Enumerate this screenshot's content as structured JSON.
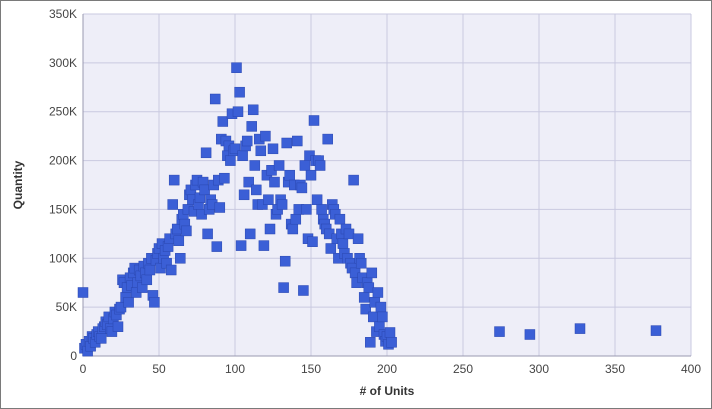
{
  "chart_data": {
    "type": "scatter",
    "xlabel": "# of Units",
    "ylabel": "Quantity",
    "xlim": [
      0,
      400
    ],
    "ylim": [
      0,
      350000
    ],
    "x_ticks": [
      0,
      50,
      100,
      150,
      200,
      250,
      300,
      350,
      400
    ],
    "x_tick_labels": [
      "0",
      "50",
      "100",
      "150",
      "200",
      "250",
      "300",
      "350",
      "400"
    ],
    "y_ticks": [
      0,
      50000,
      100000,
      150000,
      200000,
      250000,
      300000,
      350000
    ],
    "y_tick_labels": [
      "0",
      "50K",
      "100K",
      "150K",
      "200K",
      "250K",
      "300K",
      "350K"
    ],
    "grid": true,
    "legend": "none",
    "colors": {
      "marker": "#3b5fd6",
      "marker_edge": "#2a47b0",
      "plot_background": "#eeeef8",
      "grid": "#c9c9e0"
    },
    "series": [
      {
        "points": [
          [
            0,
            65000
          ],
          [
            1,
            8000
          ],
          [
            2,
            12000
          ],
          [
            3,
            5000
          ],
          [
            4,
            15000
          ],
          [
            5,
            10000
          ],
          [
            6,
            20000
          ],
          [
            7,
            18000
          ],
          [
            8,
            14000
          ],
          [
            9,
            22000
          ],
          [
            10,
            25000
          ],
          [
            11,
            20000
          ],
          [
            12,
            18000
          ],
          [
            13,
            28000
          ],
          [
            14,
            30000
          ],
          [
            15,
            35000
          ],
          [
            16,
            32000
          ],
          [
            17,
            40000
          ],
          [
            18,
            28000
          ],
          [
            19,
            25000
          ],
          [
            20,
            38000
          ],
          [
            21,
            45000
          ],
          [
            22,
            42000
          ],
          [
            23,
            30000
          ],
          [
            24,
            48000
          ],
          [
            25,
            50000
          ],
          [
            26,
            78000
          ],
          [
            27,
            75000
          ],
          [
            28,
            60000
          ],
          [
            29,
            70000
          ],
          [
            30,
            55000
          ],
          [
            31,
            80000
          ],
          [
            32,
            72000
          ],
          [
            33,
            85000
          ],
          [
            34,
            90000
          ],
          [
            35,
            65000
          ],
          [
            36,
            75000
          ],
          [
            37,
            88000
          ],
          [
            38,
            82000
          ],
          [
            39,
            70000
          ],
          [
            40,
            92000
          ],
          [
            41,
            85000
          ],
          [
            42,
            78000
          ],
          [
            43,
            95000
          ],
          [
            44,
            88000
          ],
          [
            45,
            100000
          ],
          [
            46,
            62000
          ],
          [
            47,
            55000
          ],
          [
            48,
            98000
          ],
          [
            49,
            105000
          ],
          [
            50,
            110000
          ],
          [
            51,
            90000
          ],
          [
            52,
            115000
          ],
          [
            53,
            100000
          ],
          [
            54,
            108000
          ],
          [
            55,
            95000
          ],
          [
            56,
            112000
          ],
          [
            57,
            120000
          ],
          [
            58,
            88000
          ],
          [
            59,
            155000
          ],
          [
            60,
            180000
          ],
          [
            61,
            125000
          ],
          [
            62,
            130000
          ],
          [
            63,
            118000
          ],
          [
            64,
            100000
          ],
          [
            65,
            140000
          ],
          [
            66,
            145000
          ],
          [
            67,
            135000
          ],
          [
            68,
            128000
          ],
          [
            69,
            150000
          ],
          [
            70,
            165000
          ],
          [
            71,
            170000
          ],
          [
            72,
            160000
          ],
          [
            73,
            148000
          ],
          [
            74,
            175000
          ],
          [
            75,
            180000
          ],
          [
            76,
            155000
          ],
          [
            77,
            162000
          ],
          [
            78,
            145000
          ],
          [
            79,
            178000
          ],
          [
            80,
            170000
          ],
          [
            81,
            208000
          ],
          [
            82,
            125000
          ],
          [
            83,
            150000
          ],
          [
            84,
            160000
          ],
          [
            85,
            155000
          ],
          [
            86,
            175000
          ],
          [
            87,
            263000
          ],
          [
            88,
            112000
          ],
          [
            89,
            180000
          ],
          [
            90,
            152000
          ],
          [
            91,
            222000
          ],
          [
            92,
            240000
          ],
          [
            93,
            182000
          ],
          [
            94,
            220000
          ],
          [
            95,
            205000
          ],
          [
            96,
            215000
          ],
          [
            97,
            200000
          ],
          [
            98,
            248000
          ],
          [
            99,
            210000
          ],
          [
            100,
            212000
          ],
          [
            101,
            295000
          ],
          [
            102,
            250000
          ],
          [
            103,
            270000
          ],
          [
            104,
            113000
          ],
          [
            105,
            205000
          ],
          [
            106,
            165000
          ],
          [
            107,
            215000
          ],
          [
            108,
            220000
          ],
          [
            109,
            178000
          ],
          [
            110,
            125000
          ],
          [
            111,
            235000
          ],
          [
            112,
            252000
          ],
          [
            113,
            195000
          ],
          [
            114,
            170000
          ],
          [
            115,
            155000
          ],
          [
            116,
            222000
          ],
          [
            117,
            210000
          ],
          [
            118,
            155000
          ],
          [
            119,
            113000
          ],
          [
            120,
            225000
          ],
          [
            121,
            185000
          ],
          [
            122,
            160000
          ],
          [
            123,
            130000
          ],
          [
            124,
            190000
          ],
          [
            125,
            212000
          ],
          [
            126,
            178000
          ],
          [
            127,
            145000
          ],
          [
            128,
            150000
          ],
          [
            129,
            195000
          ],
          [
            130,
            160000
          ],
          [
            131,
            155000
          ],
          [
            132,
            70000
          ],
          [
            133,
            97000
          ],
          [
            134,
            218000
          ],
          [
            135,
            178000
          ],
          [
            136,
            185000
          ],
          [
            137,
            135000
          ],
          [
            138,
            130000
          ],
          [
            139,
            175000
          ],
          [
            140,
            140000
          ],
          [
            141,
            220000
          ],
          [
            142,
            150000
          ],
          [
            143,
            175000
          ],
          [
            144,
            172000
          ],
          [
            145,
            67000
          ],
          [
            146,
            195000
          ],
          [
            147,
            150000
          ],
          [
            148,
            120000
          ],
          [
            149,
            205000
          ],
          [
            150,
            185000
          ],
          [
            151,
            117000
          ],
          [
            152,
            241000
          ],
          [
            153,
            200000
          ],
          [
            154,
            160000
          ],
          [
            155,
            200000
          ],
          [
            156,
            195000
          ],
          [
            157,
            150000
          ],
          [
            158,
            140000
          ],
          [
            159,
            135000
          ],
          [
            160,
            130000
          ],
          [
            161,
            222000
          ],
          [
            162,
            125000
          ],
          [
            163,
            110000
          ],
          [
            164,
            155000
          ],
          [
            165,
            150000
          ],
          [
            166,
            145000
          ],
          [
            167,
            120000
          ],
          [
            168,
            100000
          ],
          [
            169,
            140000
          ],
          [
            170,
            125000
          ],
          [
            171,
            115000
          ],
          [
            172,
            105000
          ],
          [
            173,
            130000
          ],
          [
            174,
            100000
          ],
          [
            175,
            125000
          ],
          [
            176,
            95000
          ],
          [
            177,
            90000
          ],
          [
            178,
            180000
          ],
          [
            179,
            85000
          ],
          [
            180,
            75000
          ],
          [
            181,
            120000
          ],
          [
            182,
            100000
          ],
          [
            183,
            95000
          ],
          [
            184,
            80000
          ],
          [
            185,
            60000
          ],
          [
            186,
            48000
          ],
          [
            187,
            75000
          ],
          [
            188,
            70000
          ],
          [
            189,
            14000
          ],
          [
            190,
            85000
          ],
          [
            191,
            40000
          ],
          [
            192,
            55000
          ],
          [
            193,
            25000
          ],
          [
            194,
            65000
          ],
          [
            195,
            30000
          ],
          [
            196,
            50000
          ],
          [
            197,
            40000
          ],
          [
            198,
            22000
          ],
          [
            199,
            15000
          ],
          [
            200,
            20000
          ],
          [
            201,
            12000
          ],
          [
            202,
            24000
          ],
          [
            203,
            14000
          ],
          [
            274,
            25000
          ],
          [
            294,
            22000
          ],
          [
            327,
            28000
          ],
          [
            377,
            26000
          ]
        ]
      }
    ]
  }
}
